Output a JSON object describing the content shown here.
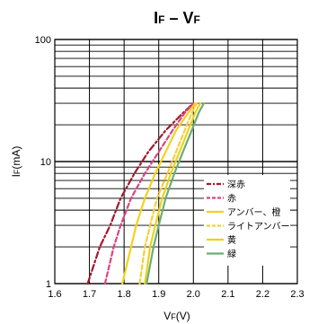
{
  "chart_data": {
    "type": "line",
    "title": {
      "main1": "I",
      "sub1": "F",
      "dash": " – ",
      "main2": "V",
      "sub2": "F"
    },
    "xlabel": {
      "main": "V",
      "sub": "F",
      "unit": "(V)"
    },
    "ylabel": {
      "main": "I",
      "sub": "F",
      "unit": "(mA)"
    },
    "xlim": [
      1.6,
      2.3
    ],
    "ylim": [
      1,
      100
    ],
    "yscale": "log",
    "x_ticks": [
      "1.6",
      "1.7",
      "1.8",
      "1.9",
      "2.0",
      "2.1",
      "2.2",
      "2.3"
    ],
    "y_ticks": [
      "1",
      "10",
      "100"
    ],
    "grid": true,
    "legend_position": "right-center",
    "series": [
      {
        "name": "深赤",
        "color": "#a0192e",
        "dash": "dashdot",
        "points": [
          [
            1.695,
            1
          ],
          [
            1.73,
            2
          ],
          [
            1.76,
            3
          ],
          [
            1.79,
            5
          ],
          [
            1.83,
            8
          ],
          [
            1.87,
            12
          ],
          [
            1.92,
            18
          ],
          [
            1.97,
            25
          ],
          [
            2.0,
            30
          ]
        ]
      },
      {
        "name": "赤",
        "color": "#d8457f",
        "dash": "dashed",
        "points": [
          [
            1.745,
            1
          ],
          [
            1.77,
            2
          ],
          [
            1.79,
            3
          ],
          [
            1.82,
            5
          ],
          [
            1.86,
            8
          ],
          [
            1.9,
            12
          ],
          [
            1.94,
            18
          ],
          [
            1.975,
            25
          ],
          [
            2.0,
            30
          ]
        ]
      },
      {
        "name": "アンバー、橙",
        "color": "#f2d31b",
        "dash": "solid",
        "points": [
          [
            1.795,
            1
          ],
          [
            1.82,
            2
          ],
          [
            1.835,
            3
          ],
          [
            1.86,
            5
          ],
          [
            1.89,
            8
          ],
          [
            1.92,
            12
          ],
          [
            1.95,
            18
          ],
          [
            1.985,
            25
          ],
          [
            2.005,
            30
          ]
        ]
      },
      {
        "name": "ライトアンバー",
        "color": "#f6cf3a",
        "dash": "dashed",
        "points": [
          [
            1.845,
            1
          ],
          [
            1.86,
            2
          ],
          [
            1.875,
            3
          ],
          [
            1.895,
            5
          ],
          [
            1.925,
            8
          ],
          [
            1.95,
            12
          ],
          [
            1.975,
            18
          ],
          [
            1.995,
            25
          ],
          [
            2.01,
            30
          ]
        ]
      },
      {
        "name": "黄",
        "color": "#ecd21f",
        "dash": "solid",
        "points": [
          [
            1.86,
            1
          ],
          [
            1.875,
            2
          ],
          [
            1.89,
            3
          ],
          [
            1.91,
            5
          ],
          [
            1.935,
            8
          ],
          [
            1.96,
            12
          ],
          [
            1.985,
            18
          ],
          [
            2.005,
            25
          ],
          [
            2.02,
            30
          ]
        ]
      },
      {
        "name": "緑",
        "color": "#6aae74",
        "dash": "solid",
        "points": [
          [
            1.865,
            1
          ],
          [
            1.885,
            2
          ],
          [
            1.9,
            3
          ],
          [
            1.92,
            5
          ],
          [
            1.945,
            8
          ],
          [
            1.97,
            12
          ],
          [
            1.995,
            18
          ],
          [
            2.015,
            25
          ],
          [
            2.03,
            30
          ]
        ]
      }
    ]
  }
}
